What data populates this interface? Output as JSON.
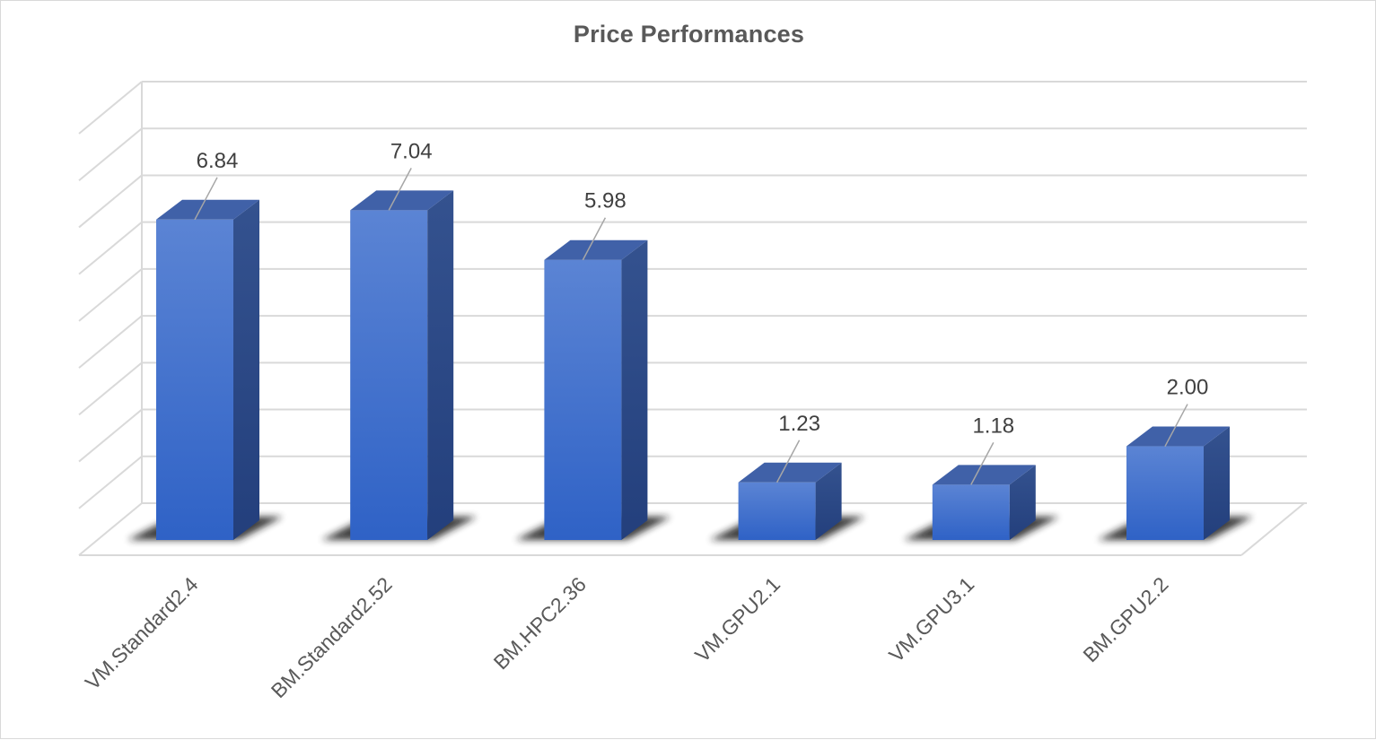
{
  "chart_data": {
    "type": "bar",
    "style": "3d-column",
    "title": "Price Performances",
    "xlabel": "",
    "ylabel": "",
    "categories": [
      "VM.Standard2.4",
      "BM.Standard2.52",
      "BM.HPC2.36",
      "VM.GPU2.1",
      "VM.GPU3.1",
      "BM.GPU2.2"
    ],
    "values": [
      6.84,
      7.04,
      5.98,
      1.23,
      1.18,
      2.0
    ],
    "data_labels": [
      "6.84",
      "7.04",
      "5.98",
      "1.23",
      "1.18",
      "2.00"
    ],
    "ylim": [
      0,
      9
    ],
    "grid": true,
    "legend": "none",
    "colors": {
      "bar_front": "#3c6bc9",
      "bar_front_top": "#5b84d4",
      "bar_top": "#4061a8",
      "bar_side": "#2a4786",
      "gridline": "#d9d9d9",
      "title": "#595959",
      "label": "#404040"
    }
  }
}
